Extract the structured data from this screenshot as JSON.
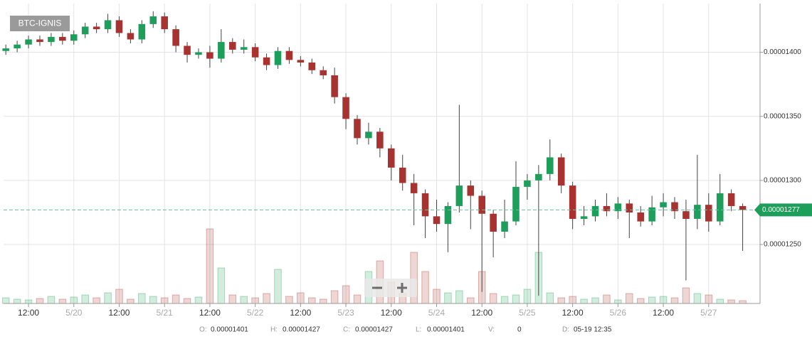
{
  "chart_data": {
    "type": "candlestick",
    "symbol": "BTC-IGNIS",
    "x": [
      "05-19 06:00",
      "05-19 09:00",
      "05-19 12:00",
      "05-19 15:00",
      "05-19 18:00",
      "05-19 21:00",
      "05-20 00:00",
      "05-20 03:00",
      "05-20 06:00",
      "05-20 09:00",
      "05-20 12:00",
      "05-20 15:00",
      "05-20 18:00",
      "05-20 21:00",
      "05-21 00:00",
      "05-21 03:00",
      "05-21 06:00",
      "05-21 09:00",
      "05-21 12:00",
      "05-21 15:00",
      "05-21 18:00",
      "05-21 21:00",
      "05-22 00:00",
      "05-22 03:00",
      "05-22 06:00",
      "05-22 09:00",
      "05-22 12:00",
      "05-22 15:00",
      "05-22 18:00",
      "05-22 21:00",
      "05-23 00:00",
      "05-23 03:00",
      "05-23 06:00",
      "05-23 09:00",
      "05-23 12:00",
      "05-23 15:00",
      "05-23 18:00",
      "05-23 21:00",
      "05-24 00:00",
      "05-24 03:00",
      "05-24 06:00",
      "05-24 09:00",
      "05-24 12:00",
      "05-24 15:00",
      "05-24 18:00",
      "05-24 21:00",
      "05-25 00:00",
      "05-25 03:00",
      "05-25 06:00",
      "05-25 09:00",
      "05-25 12:00",
      "05-25 15:00",
      "05-25 18:00",
      "05-25 21:00",
      "05-26 00:00",
      "05-26 03:00",
      "05-26 06:00",
      "05-26 09:00",
      "05-26 12:00",
      "05-26 15:00",
      "05-26 18:00",
      "05-26 21:00",
      "05-27 00:00",
      "05-27 03:00",
      "05-27 06:00",
      "05-27 09:00"
    ],
    "open": [
      1.401e-05,
      1.403e-05,
      1.406e-05,
      1.41e-05,
      1.408e-05,
      1.412e-05,
      1.409e-05,
      1.414e-05,
      1.42e-05,
      1.418e-05,
      1.425e-05,
      1.415e-05,
      1.41e-05,
      1.422e-05,
      1.428e-05,
      1.418e-05,
      1.405e-05,
      1.398e-05,
      1.4e-05,
      1.395e-05,
      1.408e-05,
      1.402e-05,
      1.404e-05,
      1.396e-05,
      1.39e-05,
      1.401e-05,
      1.394e-05,
      1.392e-05,
      1.386e-05,
      1.382e-05,
      1.365e-05,
      1.348e-05,
      1.333e-05,
      1.338e-05,
      1.325e-05,
      1.31e-05,
      1.298e-05,
      1.29e-05,
      1.272e-05,
      1.266e-05,
      1.28e-05,
      1.296e-05,
      1.288e-05,
      1.274e-05,
      1.26e-05,
      1.268e-05,
      1.295e-05,
      1.3e-05,
      1.305e-05,
      1.318e-05,
      1.296e-05,
      1.27e-05,
      1.272e-05,
      1.28e-05,
      1.276e-05,
      1.282e-05,
      1.275e-05,
      1.268e-05,
      1.279e-05,
      1.283e-05,
      1.276e-05,
      1.27e-05,
      1.281e-05,
      1.268e-05,
      1.29e-05,
      1.28e-05
    ],
    "high": [
      1.406e-05,
      1.409e-05,
      1.413e-05,
      1.413e-05,
      1.415e-05,
      1.415e-05,
      1.417e-05,
      1.423e-05,
      1.423e-05,
      1.43e-05,
      1.428e-05,
      1.418e-05,
      1.425e-05,
      1.432e-05,
      1.431e-05,
      1.421e-05,
      1.408e-05,
      1.403e-05,
      1.405e-05,
      1.418e-05,
      1.411e-05,
      1.41e-05,
      1.407e-05,
      1.399e-05,
      1.404e-05,
      1.404e-05,
      1.397e-05,
      1.395e-05,
      1.389e-05,
      1.388e-05,
      1.368e-05,
      1.351e-05,
      1.345e-05,
      1.341e-05,
      1.328e-05,
      1.32e-05,
      1.305e-05,
      1.293e-05,
      1.285e-05,
      1.283e-05,
      1.359e-05,
      1.3e-05,
      1.292e-05,
      1.277e-05,
      1.285e-05,
      1.315e-05,
      1.305e-05,
      1.312e-05,
      1.332e-05,
      1.321e-05,
      1.299e-05,
      1.28e-05,
      1.285e-05,
      1.29e-05,
      1.287e-05,
      1.285e-05,
      1.28e-05,
      1.288e-05,
      1.29e-05,
      1.287e-05,
      1.285e-05,
      1.32e-05,
      1.29e-05,
      1.305e-05,
      1.293e-05,
      1.282e-05
    ],
    "low": [
      1.398e-05,
      1.4e-05,
      1.403e-05,
      1.405e-05,
      1.405e-05,
      1.406e-05,
      1.406e-05,
      1.411e-05,
      1.415e-05,
      1.415e-05,
      1.412e-05,
      1.407e-05,
      1.407e-05,
      1.419e-05,
      1.415e-05,
      1.4e-05,
      1.392e-05,
      1.395e-05,
      1.388e-05,
      1.392e-05,
      1.399e-05,
      1.399e-05,
      1.393e-05,
      1.386e-05,
      1.387e-05,
      1.391e-05,
      1.389e-05,
      1.383e-05,
      1.379e-05,
      1.36e-05,
      1.34e-05,
      1.328e-05,
      1.328e-05,
      1.318e-05,
      1.3e-05,
      1.292e-05,
      1.265e-05,
      1.255e-05,
      1.26e-05,
      1.244e-05,
      1.275e-05,
      1.262e-05,
      1.213e-05,
      1.24e-05,
      1.255e-05,
      1.265e-05,
      1.285e-05,
      1.21e-05,
      1.3e-05,
      1.29e-05,
      1.262e-05,
      1.265e-05,
      1.268e-05,
      1.272e-05,
      1.27e-05,
      1.255e-05,
      1.264e-05,
      1.265e-05,
      1.272e-05,
      1.27e-05,
      1.222e-05,
      1.262e-05,
      1.26e-05,
      1.265e-05,
      1.276e-05,
      1.245e-05
    ],
    "close": [
      1.403e-05,
      1.406e-05,
      1.41e-05,
      1.408e-05,
      1.412e-05,
      1.409e-05,
      1.414e-05,
      1.42e-05,
      1.418e-05,
      1.425e-05,
      1.415e-05,
      1.41e-05,
      1.422e-05,
      1.428e-05,
      1.418e-05,
      1.405e-05,
      1.398e-05,
      1.4e-05,
      1.395e-05,
      1.408e-05,
      1.402e-05,
      1.404e-05,
      1.396e-05,
      1.39e-05,
      1.401e-05,
      1.394e-05,
      1.392e-05,
      1.386e-05,
      1.382e-05,
      1.365e-05,
      1.348e-05,
      1.333e-05,
      1.338e-05,
      1.325e-05,
      1.31e-05,
      1.298e-05,
      1.29e-05,
      1.272e-05,
      1.266e-05,
      1.28e-05,
      1.296e-05,
      1.288e-05,
      1.274e-05,
      1.26e-05,
      1.268e-05,
      1.295e-05,
      1.3e-05,
      1.305e-05,
      1.318e-05,
      1.296e-05,
      1.27e-05,
      1.272e-05,
      1.28e-05,
      1.276e-05,
      1.282e-05,
      1.275e-05,
      1.268e-05,
      1.279e-05,
      1.283e-05,
      1.276e-05,
      1.27e-05,
      1.281e-05,
      1.268e-05,
      1.29e-05,
      1.28e-05,
      1.277e-05
    ],
    "volume": [
      8,
      6,
      5,
      7,
      10,
      6,
      9,
      12,
      8,
      15,
      20,
      6,
      14,
      10,
      8,
      12,
      7,
      9,
      105,
      50,
      12,
      10,
      8,
      14,
      48,
      10,
      15,
      8,
      6,
      18,
      25,
      12,
      45,
      60,
      30,
      14,
      72,
      45,
      20,
      15,
      18,
      8,
      45,
      14,
      10,
      12,
      20,
      72,
      15,
      8,
      10,
      6,
      8,
      12,
      5,
      14,
      7,
      9,
      10,
      8,
      22,
      14,
      12,
      6,
      5,
      4
    ],
    "up_color": "#1e9e5b",
    "down_color": "#a8322f",
    "xlim": [
      "05-19 05:24",
      "05-27 13:36"
    ],
    "xticks": [
      {
        "value": "05-19 12:00",
        "label": "12:00"
      },
      {
        "value": "05-20 00:00",
        "label": "5/20"
      },
      {
        "value": "05-20 12:00",
        "label": "12:00"
      },
      {
        "value": "05-21 00:00",
        "label": "5/21"
      },
      {
        "value": "05-21 12:00",
        "label": "12:00"
      },
      {
        "value": "05-22 00:00",
        "label": "5/22"
      },
      {
        "value": "05-22 12:00",
        "label": "12:00"
      },
      {
        "value": "05-23 00:00",
        "label": "5/23"
      },
      {
        "value": "05-23 12:00",
        "label": "12:00"
      },
      {
        "value": "05-24 00:00",
        "label": "5/24"
      },
      {
        "value": "05-24 12:00",
        "label": "12:00"
      },
      {
        "value": "05-25 00:00",
        "label": "5/25"
      },
      {
        "value": "05-25 12:00",
        "label": "12:00"
      },
      {
        "value": "05-26 00:00",
        "label": "5/26"
      },
      {
        "value": "05-26 12:00",
        "label": "12:00"
      },
      {
        "value": "05-27 00:00",
        "label": "5/27"
      }
    ],
    "ylim": [
      1.204e-05,
      1.438e-05
    ],
    "yticks": [
      {
        "value": 1.25e-05,
        "label": "0.00001250"
      },
      {
        "value": 1.3e-05,
        "label": "0.00001300"
      },
      {
        "value": 1.35e-05,
        "label": "0.00001350"
      },
      {
        "value": 1.4e-05,
        "label": "0.00001400"
      }
    ],
    "grid": true,
    "last_price": {
      "value": 1.277e-05,
      "label": "0.00001277"
    }
  },
  "readout": [
    {
      "label": "O:",
      "value": "0.00001401"
    },
    {
      "label": "H:",
      "value": "0.00001427"
    },
    {
      "label": "C:",
      "value": "0.00001427"
    },
    {
      "label": "L:",
      "value": "0.00001401"
    },
    {
      "label": "V:",
      "value": "0"
    },
    {
      "label": "D:",
      "value": "05-19 12:35"
    }
  ]
}
